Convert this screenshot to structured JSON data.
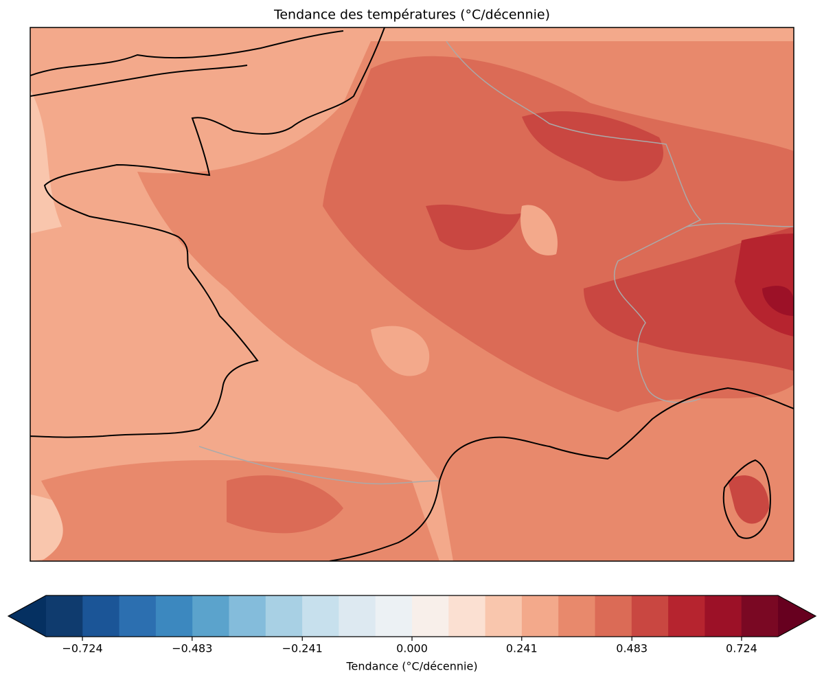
{
  "chart_data": {
    "type": "contour-map",
    "title": "Tendance des températures (°C/décennie)",
    "colorbar": {
      "label": "Tendance (°C/décennie)",
      "clim": [
        -0.804,
        0.804
      ],
      "colors": [
        "#0f3b6e",
        "#1b5597",
        "#2c6fb0",
        "#3c88bf",
        "#5ba3cc",
        "#84bcdb",
        "#a8d0e4",
        "#c7e0ed",
        "#dde9f1",
        "#ecf1f4",
        "#f8efea",
        "#fbe0d2",
        "#f9c6ad",
        "#f3a98b",
        "#e8896c",
        "#db6b56",
        "#c94741",
        "#b6242f",
        "#9c1127",
        "#7a0823"
      ],
      "under_color": "#053061",
      "over_color": "#67001f",
      "ticks": [
        {
          "value": -0.724,
          "label": "−0.724"
        },
        {
          "value": -0.483,
          "label": "−0.483"
        },
        {
          "value": -0.241,
          "label": "−0.241"
        },
        {
          "value": 0,
          "label": "0.000"
        },
        0.241,
        0.483,
        0.724
      ]
    }
  }
}
